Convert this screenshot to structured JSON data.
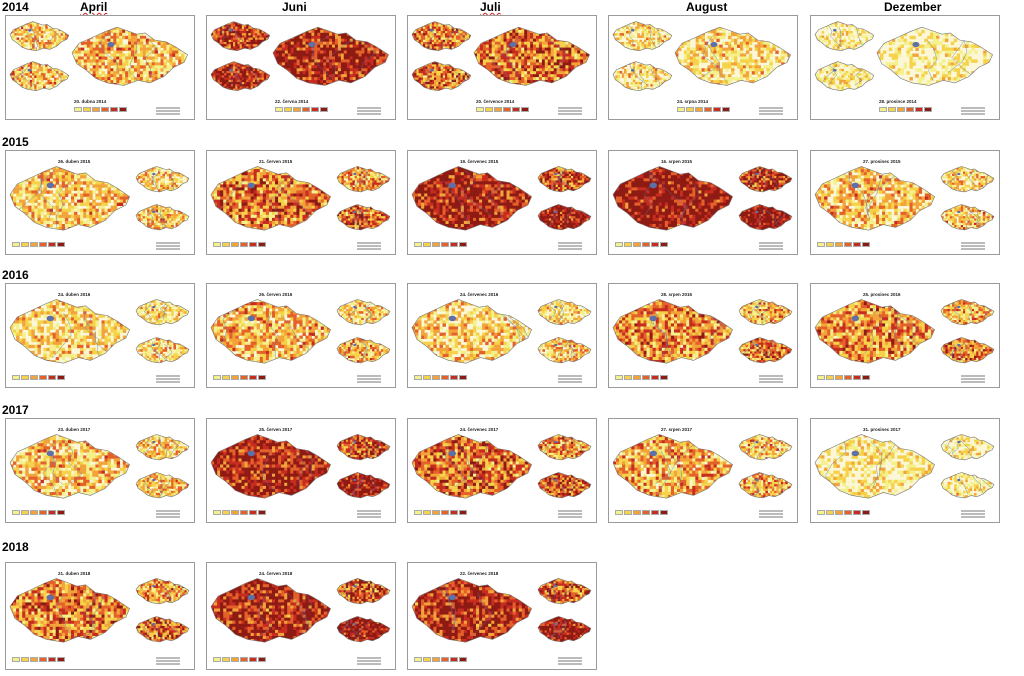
{
  "months": [
    "April",
    "Juni",
    "Juli",
    "August",
    "Dezember"
  ],
  "month_spellcheck": [
    true,
    false,
    true,
    false,
    false
  ],
  "palette": [
    "#ffffff",
    "#f4f08c",
    "#f5d24a",
    "#f2a43a",
    "#e5612a",
    "#c62c1f",
    "#8e1a14"
  ],
  "rows": [
    {
      "year": "2014",
      "style": "old",
      "cells": [
        {
          "date": "20. dubna 2014",
          "level": 0.35
        },
        {
          "date": "22. června 2014",
          "level": 0.85
        },
        {
          "date": "20. července 2014",
          "level": 0.6
        },
        {
          "date": "24. srpna 2014",
          "level": 0.2
        },
        {
          "date": "28. prosince 2014",
          "level": 0.05
        }
      ]
    },
    {
      "year": "2015",
      "style": "new",
      "cells": [
        {
          "date": "26. duben 2015",
          "level": 0.3
        },
        {
          "date": "21. červen 2015",
          "level": 0.55
        },
        {
          "date": "19. červenec 2015",
          "level": 0.85
        },
        {
          "date": "16. srpen 2015",
          "level": 0.95
        },
        {
          "date": "27. prosinec 2015",
          "level": 0.3
        }
      ]
    },
    {
      "year": "2016",
      "style": "new",
      "cells": [
        {
          "date": "24. duben 2016",
          "level": 0.22
        },
        {
          "date": "26. červen 2016",
          "level": 0.35
        },
        {
          "date": "24. červenec 2016",
          "level": 0.25
        },
        {
          "date": "28. srpen 2016",
          "level": 0.5
        },
        {
          "date": "25. prosinec 2016",
          "level": 0.5
        }
      ]
    },
    {
      "year": "2017",
      "style": "new",
      "cells": [
        {
          "date": "23. duben 2017",
          "level": 0.3
        },
        {
          "date": "25. červen 2017",
          "level": 0.85
        },
        {
          "date": "24. červenec 2017",
          "level": 0.6
        },
        {
          "date": "27. srpen 2017",
          "level": 0.4
        },
        {
          "date": "31. prosinec 2017",
          "level": 0.1
        }
      ]
    },
    {
      "year": "2018",
      "style": "new",
      "cells": [
        {
          "date": "21. duben 2018",
          "level": 0.55
        },
        {
          "date": "24. červen 2018",
          "level": 0.85
        },
        {
          "date": "22. červenec 2018",
          "level": 0.82
        }
      ]
    }
  ]
}
